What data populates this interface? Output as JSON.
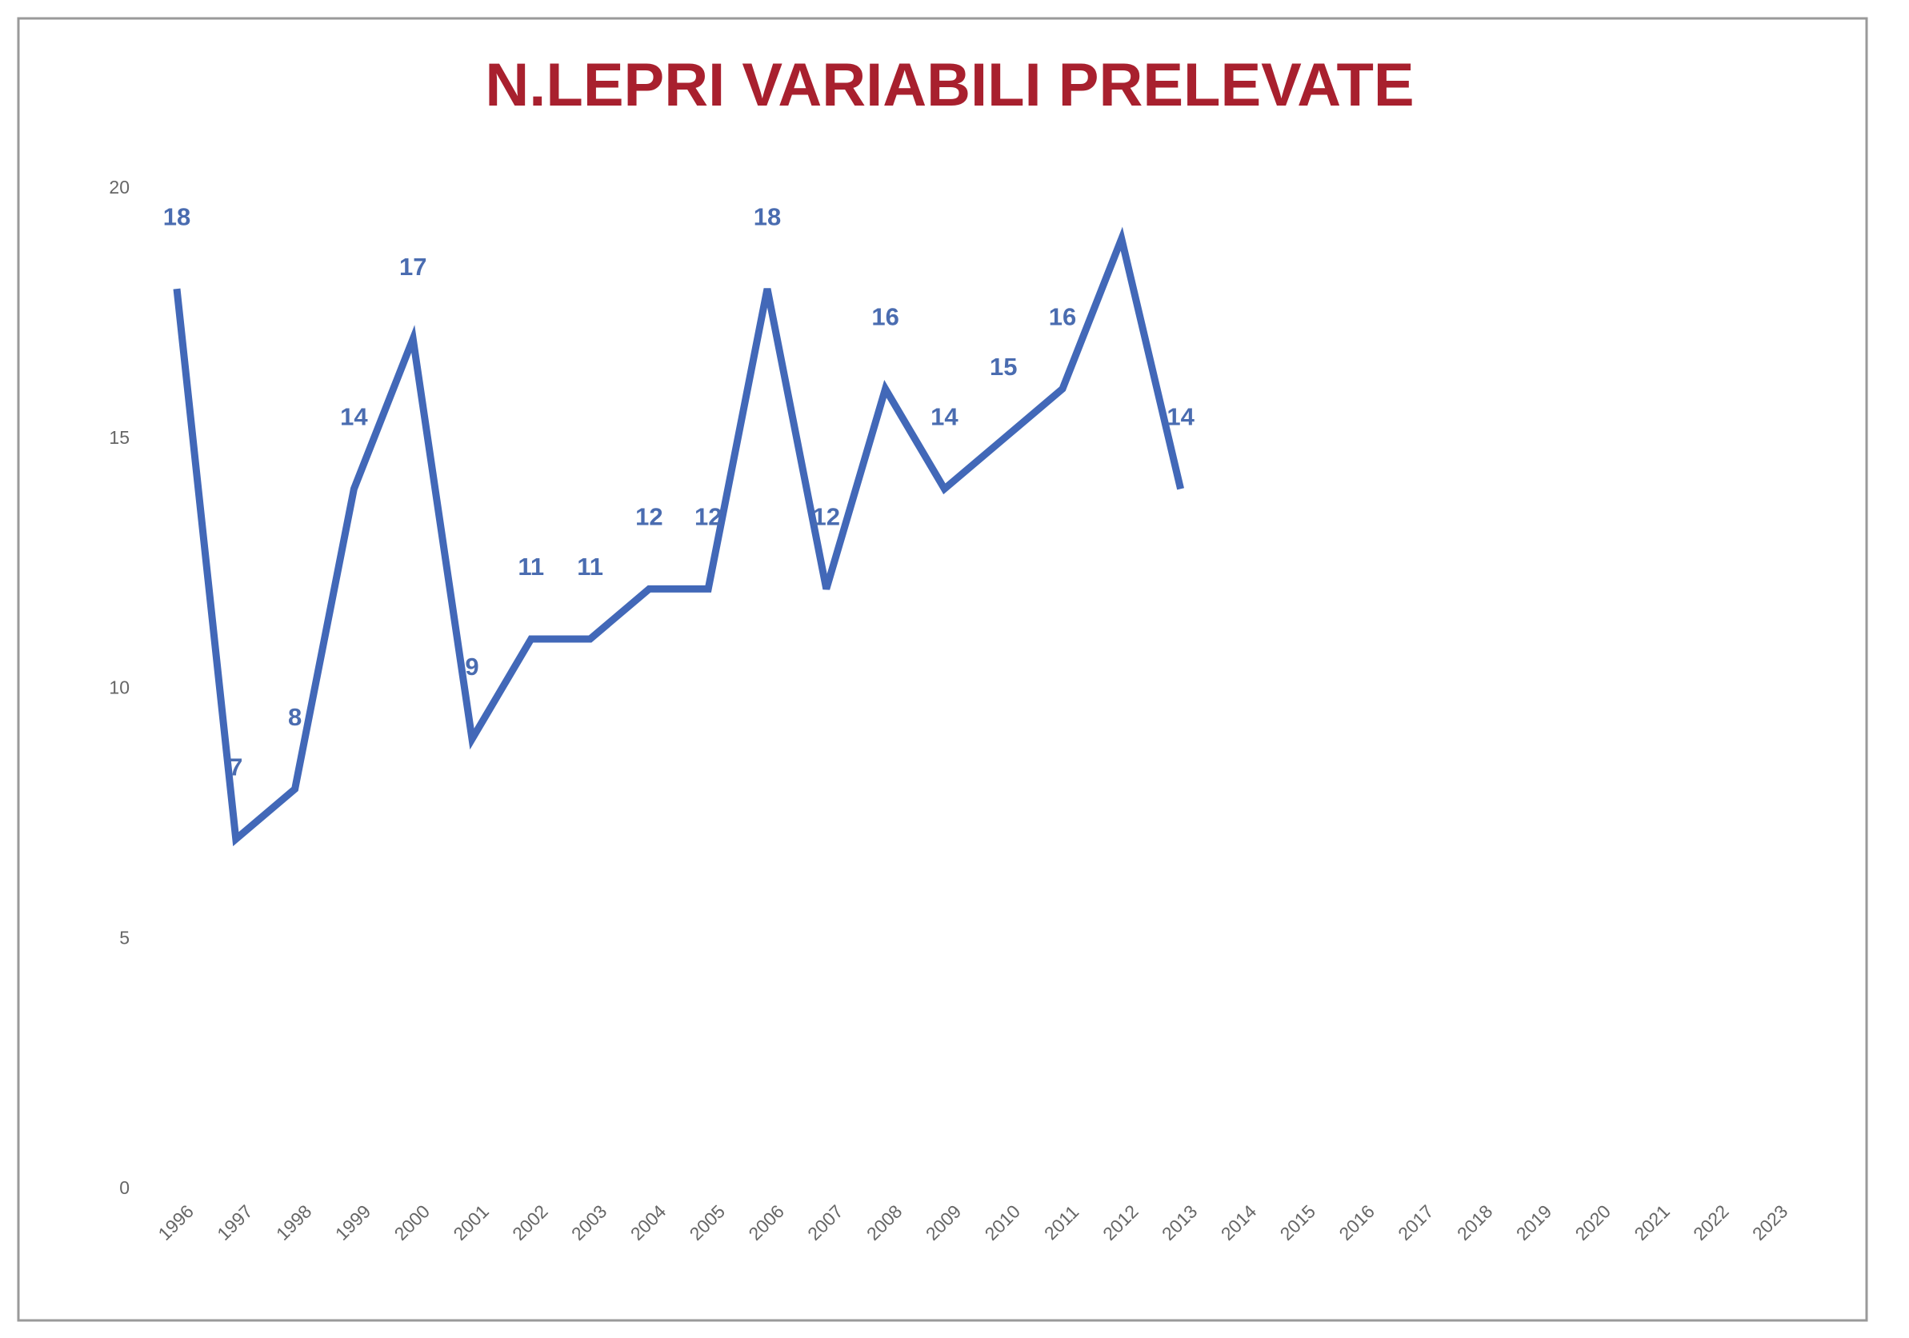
{
  "chart_data": {
    "type": "line",
    "title": "N.LEPRI VARIABILI PRELEVATE",
    "categories": [
      "1996",
      "1997",
      "1998",
      "1999",
      "2000",
      "2001",
      "2002",
      "2003",
      "2004",
      "2005",
      "2006",
      "2007",
      "2008",
      "2009",
      "2010",
      "2011",
      "2012",
      "2013",
      "2014",
      "2015",
      "2016",
      "2017",
      "2018",
      "2019",
      "2020",
      "2021",
      "2022",
      "2023"
    ],
    "values": [
      18,
      7,
      8,
      14,
      17,
      9,
      11,
      11,
      12,
      12,
      18,
      12,
      16,
      14,
      15,
      16,
      19,
      14,
      null,
      null,
      null,
      null,
      null,
      null,
      null,
      null,
      null,
      null
    ],
    "value_labels": [
      "18",
      "7",
      "8",
      "14",
      "17",
      "9",
      "11",
      "11",
      "12",
      "12",
      "18",
      "12",
      "16",
      "14",
      "15",
      "16",
      null,
      "14",
      null,
      null,
      null,
      null,
      null,
      null,
      null,
      null,
      null,
      null
    ],
    "color": "#4268b8",
    "ylim": [
      0,
      20
    ],
    "yticks": [
      0,
      5,
      10,
      15,
      20
    ],
    "grid": false
  }
}
